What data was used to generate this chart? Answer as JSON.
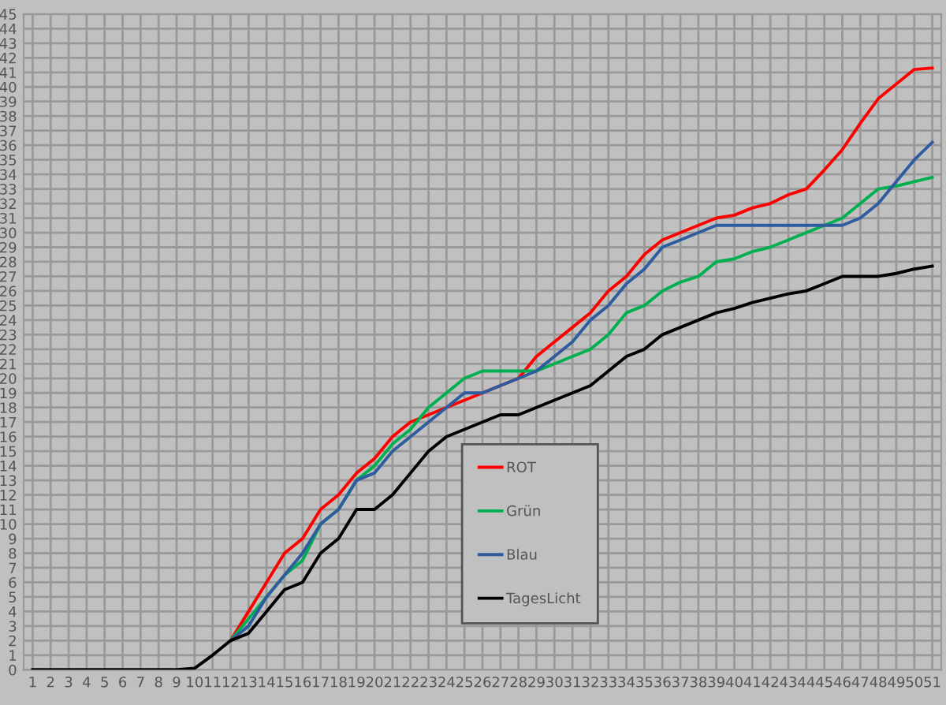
{
  "chart_data": {
    "type": "line",
    "categories": [
      "1",
      "2",
      "3",
      "4",
      "5",
      "6",
      "7",
      "8",
      "9",
      "10",
      "11",
      "12",
      "13",
      "14",
      "15",
      "16",
      "17",
      "18",
      "19",
      "20",
      "21",
      "22",
      "23",
      "24",
      "25",
      "26",
      "27",
      "28",
      "29",
      "30",
      "31",
      "32",
      "33",
      "34",
      "35",
      "36",
      "37",
      "38",
      "39",
      "40",
      "41",
      "42",
      "43",
      "44",
      "45",
      "46",
      "47",
      "48",
      "49",
      "50",
      "51"
    ],
    "ylim": [
      0,
      45
    ],
    "yticks": [
      0,
      1,
      2,
      3,
      4,
      5,
      6,
      7,
      8,
      9,
      10,
      11,
      12,
      13,
      14,
      15,
      16,
      17,
      18,
      19,
      20,
      21,
      22,
      23,
      24,
      25,
      26,
      27,
      28,
      29,
      30,
      31,
      32,
      33,
      34,
      35,
      36,
      37,
      38,
      39,
      40,
      41,
      42,
      43,
      44,
      45
    ],
    "grid": true,
    "legend": "bottom",
    "marker": "none",
    "line_style": "solid",
    "series": [
      {
        "name": "ROT",
        "color": "#ff0000",
        "values": [
          null,
          null,
          null,
          null,
          null,
          null,
          null,
          null,
          null,
          null,
          null,
          2,
          4,
          6,
          8,
          9,
          11,
          12,
          13.5,
          14.5,
          16,
          17,
          17.5,
          18,
          18.5,
          19,
          19.5,
          20,
          21.5,
          22.5,
          23.5,
          24.5,
          26,
          27,
          28.5,
          29.5,
          30,
          30.5,
          31,
          31.2,
          31.7,
          32,
          32.6,
          33,
          34.3,
          35.7,
          37.5,
          39.2,
          40.2,
          41.2,
          41.3
        ]
      },
      {
        "name": "Grün",
        "color": "#00b050",
        "values": [
          null,
          null,
          null,
          null,
          null,
          null,
          null,
          null,
          null,
          null,
          null,
          2,
          3.5,
          5,
          6.5,
          7.5,
          10,
          11,
          13,
          14,
          15.5,
          16.5,
          18,
          19,
          20,
          20.5,
          20.5,
          20.5,
          20.5,
          21,
          21.5,
          22,
          23,
          24.5,
          25,
          26,
          26.6,
          27,
          28,
          28.2,
          28.7,
          29,
          29.5,
          30,
          30.5,
          31,
          32,
          33,
          33.2,
          33.5,
          33.8
        ]
      },
      {
        "name": "Blau",
        "color": "#2e5c9e",
        "values": [
          null,
          null,
          null,
          null,
          null,
          null,
          null,
          null,
          null,
          null,
          null,
          2,
          3,
          5,
          6.5,
          8,
          10,
          11,
          13,
          13.5,
          15,
          16,
          17,
          18,
          19,
          19,
          19.5,
          20,
          20.5,
          21.5,
          22.5,
          24,
          25,
          26.5,
          27.5,
          29,
          29.5,
          30,
          30.5,
          30.5,
          30.5,
          30.5,
          30.5,
          30.5,
          30.5,
          30.5,
          31,
          32,
          33.5,
          35,
          36.2
        ]
      },
      {
        "name": "TagesLicht",
        "color": "#000000",
        "values": [
          0,
          0,
          0,
          0,
          0,
          0,
          0,
          0,
          0,
          0.1,
          1,
          2,
          2.5,
          4,
          5.5,
          6,
          8,
          9,
          11,
          11,
          12,
          13.5,
          15,
          16,
          16.5,
          17,
          17.5,
          17.5,
          18,
          18.5,
          19,
          19.5,
          20.5,
          21.5,
          22,
          23,
          23.5,
          24,
          24.5,
          24.8,
          25.2,
          25.5,
          25.8,
          26,
          26.5,
          27,
          27,
          27,
          27.2,
          27.5,
          27.7
        ]
      }
    ]
  }
}
